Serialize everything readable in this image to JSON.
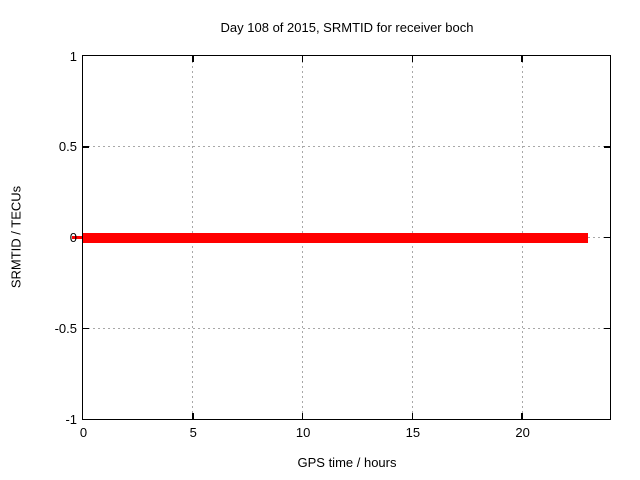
{
  "chart_data": {
    "type": "line",
    "title": "Day 108 of 2015, SRMTID for receiver boch",
    "xlabel": "GPS time / hours",
    "ylabel": "SRMTID / TECUs",
    "xlim": [
      0,
      24
    ],
    "ylim": [
      -1,
      1
    ],
    "x_ticks": [
      "0",
      "5",
      "10",
      "15",
      "20"
    ],
    "y_ticks": [
      "1",
      "0.5",
      "0",
      "-0.5",
      "-1"
    ],
    "grid": true,
    "legend": "none",
    "series": [
      {
        "name": "SRMTID",
        "color": "#ff0000",
        "style": "thick constant line",
        "y_value": 0,
        "x_start": 0,
        "x_end": 23,
        "thickness_px": 10
      }
    ]
  },
  "colors": {
    "background": "#ffffff",
    "border": "#000000",
    "grid": "#a8a8a8",
    "text": "#000000",
    "series": "#ff0000"
  }
}
